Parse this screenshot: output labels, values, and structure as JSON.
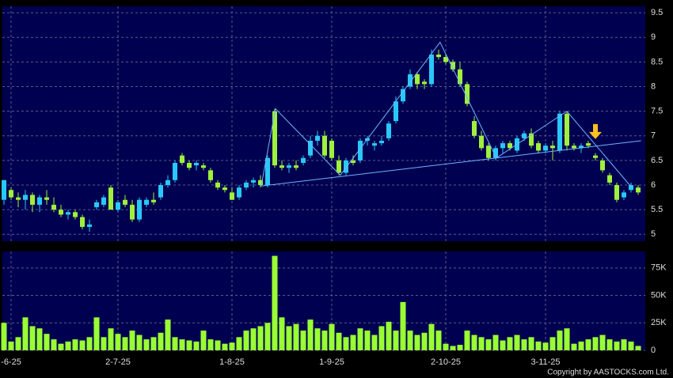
{
  "chart_data": {
    "type": "candlestick",
    "categories": [
      null,
      "-6-25",
      null,
      null,
      null,
      null,
      null,
      null,
      null,
      null,
      null,
      null,
      null,
      null,
      null,
      null,
      "2-7-25",
      null,
      null,
      null,
      null,
      null,
      null,
      null,
      null,
      null,
      null,
      null,
      null,
      null,
      null,
      null,
      "1-8-25",
      null,
      null,
      null,
      null,
      null,
      null,
      null,
      null,
      null,
      null,
      null,
      null,
      null,
      "1-9-25",
      null,
      null,
      null,
      null,
      null,
      null,
      null,
      null,
      null,
      null,
      null,
      null,
      null,
      null,
      null,
      "2-10-25",
      null,
      null,
      null,
      null,
      null,
      null,
      null,
      null,
      null,
      null,
      null,
      null,
      null,
      "3-11-25",
      null,
      null,
      null,
      null,
      null,
      null,
      null,
      null,
      null,
      null,
      null,
      null,
      null
    ],
    "ohlc": [
      [
        5.7,
        6.1,
        5.6,
        6.1
      ],
      [
        5.9,
        5.95,
        5.7,
        5.75
      ],
      [
        5.75,
        5.85,
        5.55,
        5.7
      ],
      [
        5.7,
        5.9,
        5.5,
        5.8
      ],
      [
        5.8,
        5.85,
        5.45,
        5.6
      ],
      [
        5.6,
        5.8,
        5.45,
        5.75
      ],
      [
        5.75,
        5.9,
        5.6,
        5.7
      ],
      [
        5.6,
        5.75,
        5.45,
        5.5
      ],
      [
        5.5,
        5.6,
        5.35,
        5.4
      ],
      [
        5.4,
        5.5,
        5.3,
        5.45
      ],
      [
        5.45,
        5.5,
        5.3,
        5.35
      ],
      [
        5.35,
        5.4,
        5.1,
        5.15
      ],
      [
        5.15,
        5.3,
        5.05,
        5.2
      ],
      [
        5.55,
        5.7,
        5.5,
        5.65
      ],
      [
        5.6,
        5.8,
        5.55,
        5.75
      ],
      [
        5.95,
        6.0,
        5.5,
        5.5
      ],
      [
        5.5,
        5.7,
        5.45,
        5.65
      ],
      [
        5.7,
        5.8,
        5.55,
        5.6
      ],
      [
        5.6,
        5.7,
        5.25,
        5.3
      ],
      [
        5.3,
        5.75,
        5.25,
        5.7
      ],
      [
        5.6,
        5.75,
        5.55,
        5.7
      ],
      [
        5.7,
        5.85,
        5.6,
        5.65
      ],
      [
        5.75,
        6.05,
        5.7,
        6.0
      ],
      [
        6.0,
        6.2,
        5.95,
        6.1
      ],
      [
        6.1,
        6.5,
        6.05,
        6.45
      ],
      [
        6.6,
        6.65,
        6.4,
        6.45
      ],
      [
        6.45,
        6.5,
        6.3,
        6.35
      ],
      [
        6.4,
        6.5,
        6.3,
        6.45
      ],
      [
        6.4,
        6.45,
        6.3,
        6.35
      ],
      [
        6.3,
        6.35,
        6.05,
        6.1
      ],
      [
        6.05,
        6.1,
        5.9,
        5.95
      ],
      [
        5.95,
        6.0,
        5.85,
        5.9
      ],
      [
        5.85,
        5.95,
        5.7,
        5.7
      ],
      [
        5.75,
        6.0,
        5.7,
        5.95
      ],
      [
        5.95,
        6.1,
        5.9,
        6.05
      ],
      [
        6.05,
        6.15,
        5.95,
        6.1
      ],
      [
        6.1,
        6.2,
        5.95,
        6.0
      ],
      [
        6.0,
        6.6,
        5.95,
        6.55
      ],
      [
        7.5,
        7.55,
        6.35,
        6.4
      ],
      [
        6.4,
        6.5,
        6.3,
        6.35
      ],
      [
        6.35,
        6.45,
        6.25,
        6.4
      ],
      [
        6.4,
        6.5,
        6.3,
        6.35
      ],
      [
        6.45,
        6.6,
        6.4,
        6.55
      ],
      [
        6.6,
        7.0,
        6.55,
        6.9
      ],
      [
        6.9,
        7.1,
        6.8,
        7.0
      ],
      [
        7.0,
        7.1,
        6.55,
        6.6
      ],
      [
        6.9,
        6.95,
        6.5,
        6.55
      ],
      [
        6.5,
        6.6,
        6.2,
        6.25
      ],
      [
        6.25,
        6.55,
        6.2,
        6.5
      ],
      [
        6.5,
        6.6,
        6.4,
        6.45
      ],
      [
        6.5,
        6.95,
        6.45,
        6.9
      ],
      [
        6.9,
        7.0,
        6.8,
        6.95
      ],
      [
        6.8,
        6.9,
        6.7,
        6.85
      ],
      [
        6.85,
        7.0,
        6.8,
        6.9
      ],
      [
        6.95,
        7.3,
        6.9,
        7.25
      ],
      [
        7.3,
        7.8,
        7.25,
        7.7
      ],
      [
        7.7,
        8.0,
        7.65,
        7.95
      ],
      [
        8.0,
        8.35,
        7.95,
        8.25
      ],
      [
        8.25,
        8.3,
        7.95,
        8.05
      ],
      [
        8.1,
        8.15,
        7.95,
        8.05
      ],
      [
        8.05,
        8.75,
        8.0,
        8.65
      ],
      [
        8.65,
        8.75,
        8.55,
        8.6
      ],
      [
        8.6,
        8.65,
        8.45,
        8.5
      ],
      [
        8.5,
        8.55,
        8.3,
        8.35
      ],
      [
        8.35,
        8.5,
        8.0,
        8.05
      ],
      [
        8.05,
        8.1,
        7.6,
        7.65
      ],
      [
        7.3,
        7.4,
        6.95,
        7.0
      ],
      [
        7.0,
        7.1,
        6.7,
        6.75
      ],
      [
        6.8,
        6.85,
        6.5,
        6.55
      ],
      [
        6.55,
        6.8,
        6.5,
        6.75
      ],
      [
        6.75,
        6.9,
        6.65,
        6.85
      ],
      [
        6.85,
        6.9,
        6.7,
        6.75
      ],
      [
        6.7,
        7.0,
        6.65,
        6.95
      ],
      [
        6.95,
        7.1,
        6.9,
        7.05
      ],
      [
        7.05,
        7.15,
        6.75,
        6.8
      ],
      [
        6.85,
        6.9,
        6.65,
        6.7
      ],
      [
        6.7,
        6.85,
        6.65,
        6.8
      ],
      [
        6.8,
        6.9,
        6.5,
        6.75
      ],
      [
        6.7,
        7.5,
        6.65,
        7.45
      ],
      [
        7.45,
        7.5,
        6.7,
        6.8
      ],
      [
        6.8,
        6.85,
        6.7,
        6.75
      ],
      [
        6.75,
        6.85,
        6.65,
        6.8
      ],
      [
        6.85,
        6.9,
        6.75,
        6.8
      ],
      [
        6.6,
        6.65,
        6.5,
        6.55
      ],
      [
        6.5,
        6.55,
        6.25,
        6.3
      ],
      [
        6.2,
        6.25,
        6.0,
        6.05
      ],
      [
        6.0,
        6.05,
        5.65,
        5.7
      ],
      [
        5.75,
        5.9,
        5.7,
        5.85
      ],
      [
        5.9,
        6.05,
        5.85,
        6.0
      ],
      [
        5.95,
        6.0,
        5.8,
        5.85
      ]
    ],
    "volume": [
      25000,
      8000,
      12000,
      30000,
      22000,
      20000,
      15000,
      10000,
      6000,
      8000,
      10000,
      9000,
      12000,
      30000,
      12000,
      20000,
      15000,
      12000,
      18000,
      14000,
      10000,
      12000,
      16000,
      28000,
      12000,
      10000,
      9000,
      8000,
      18000,
      10000,
      9000,
      6000,
      7000,
      12000,
      18000,
      20000,
      22000,
      25000,
      86000,
      30000,
      22000,
      24000,
      18000,
      28000,
      20000,
      18000,
      24000,
      16000,
      12000,
      14000,
      20000,
      18000,
      14000,
      22000,
      26000,
      18000,
      44000,
      18000,
      14000,
      16000,
      24000,
      18000,
      6000,
      4000,
      5000,
      18000,
      14000,
      12000,
      10000,
      14000,
      9000,
      12000,
      14000,
      10000,
      12000,
      8000,
      7000,
      12000,
      18000,
      20000,
      6000,
      8000,
      10000,
      12000,
      14000,
      10000,
      8000,
      10000,
      8000,
      4000
    ],
    "up_color": "#29c8f8",
    "down_color": "#a0f03c",
    "volume_color": "#99ff33",
    "pattern_color": "#6fb4ff",
    "ylim": [
      4.86,
      9.63
    ],
    "yticks": [
      5,
      5.5,
      6,
      6.5,
      7,
      7.5,
      8,
      8.5,
      9,
      9.5
    ],
    "volume_ylim": [
      0,
      90000
    ],
    "volume_ticks": [
      0,
      {
        "value": 25000,
        "label": "25K"
      },
      {
        "value": 50000,
        "label": "50K"
      },
      {
        "value": 75000,
        "label": "75K"
      }
    ],
    "grid": true,
    "pattern_lines": [
      {
        "x": [
          36.1,
          38.1,
          47.2,
          61.2,
          69.1,
          79,
          88.1
        ],
        "y": [
          5.98,
          7.55,
          6.2,
          8.9,
          6.55,
          7.5,
          5.95
        ]
      },
      {
        "x": [
          36.1,
          89.4
        ],
        "y": [
          5.98,
          6.9
        ]
      }
    ],
    "marker": {
      "x": 83,
      "y": 6.95,
      "color": "#ffc020"
    },
    "copyright": "Copyright by AASTOCKS.com Ltd."
  }
}
